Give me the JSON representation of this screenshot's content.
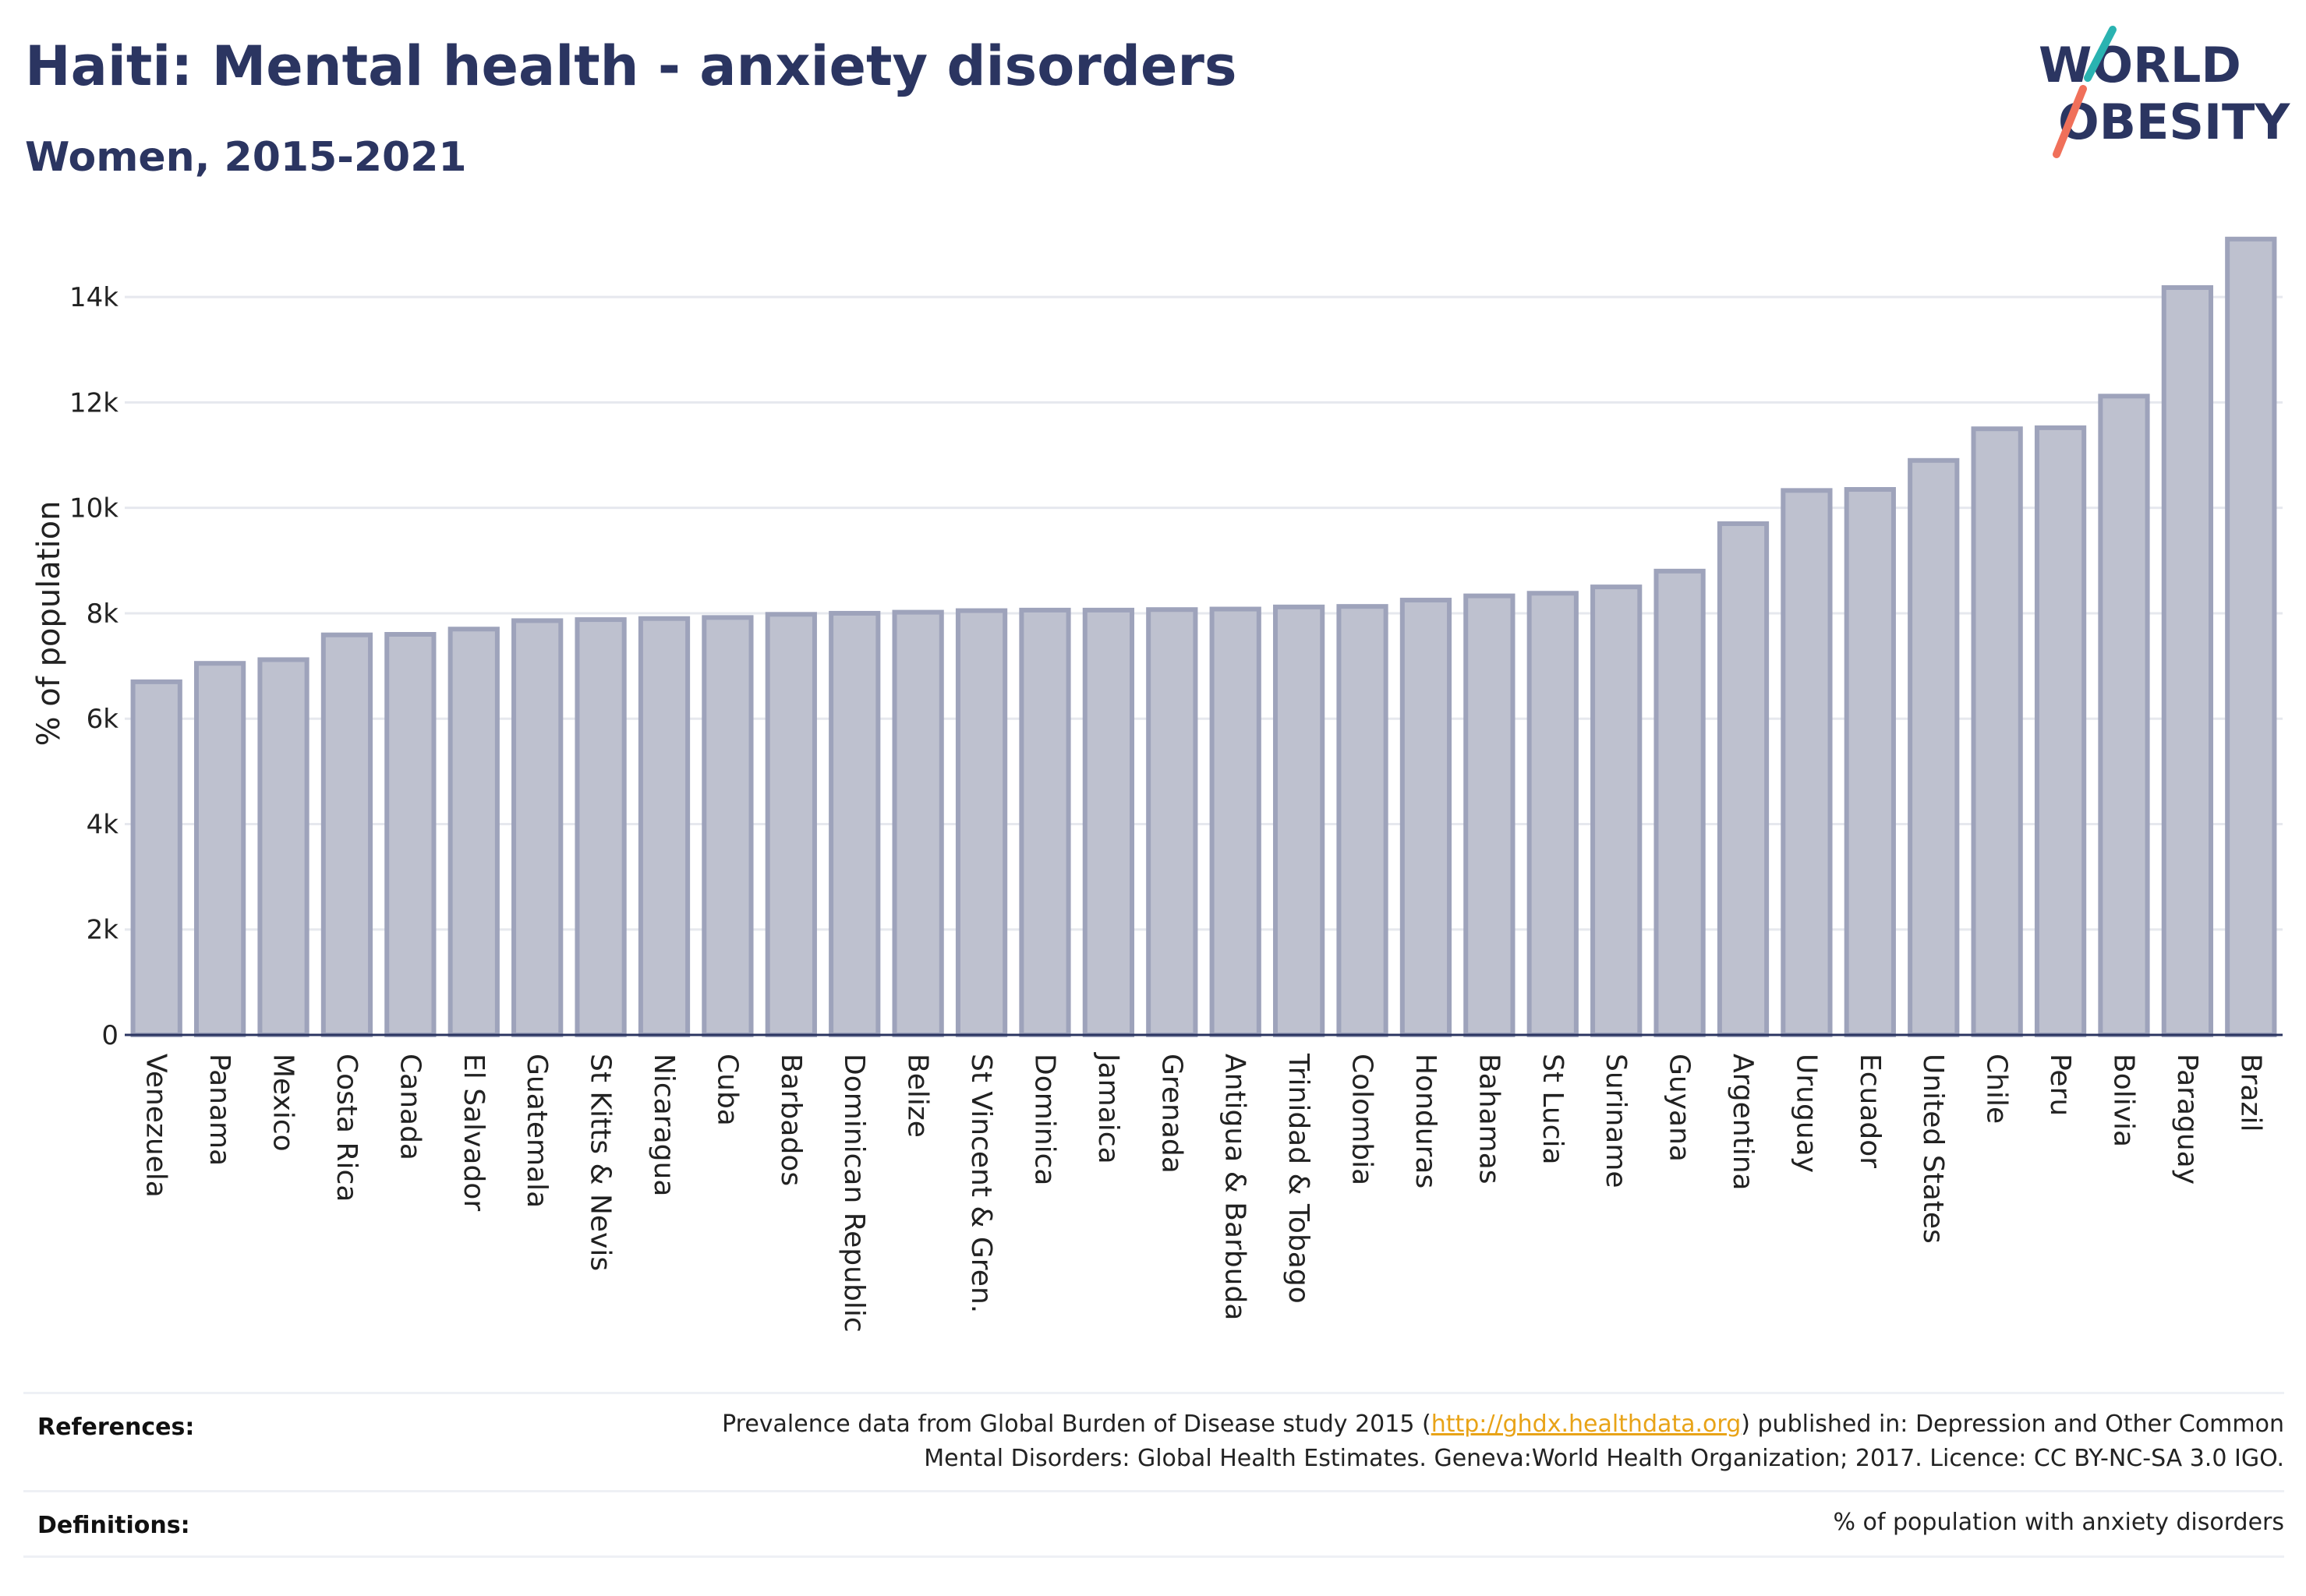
{
  "header": {
    "title": "Haiti: Mental health - anxiety disorders",
    "subtitle": "Women, 2015-2021"
  },
  "logo": {
    "line1": "WORLD",
    "line2": "OBESITY",
    "teal": "#2ab3b1",
    "coral": "#f0705a",
    "navy": "#2b3561"
  },
  "chart_data": {
    "type": "bar",
    "ylabel": "% of population",
    "ylim": [
      0,
      15200
    ],
    "yticks": [
      0,
      2000,
      4000,
      6000,
      8000,
      10000,
      12000,
      14000
    ],
    "ytick_labels": [
      "0",
      "2k",
      "4k",
      "6k",
      "8k",
      "10k",
      "12k",
      "14k"
    ],
    "grid": true,
    "bar_fill": "#bec1cf",
    "bar_stroke": "#9ea3bb",
    "categories": [
      "Venezuela",
      "Panama",
      "Mexico",
      "Costa Rica",
      "Canada",
      "El Salvador",
      "Guatemala",
      "St Kitts & Nevis",
      "Nicaragua",
      "Cuba",
      "Barbados",
      "Dominican Republic",
      "Belize",
      "St Vincent & Gren.",
      "Dominica",
      "Jamaica",
      "Grenada",
      "Antigua & Barbuda",
      "Trinidad & Tobago",
      "Colombia",
      "Honduras",
      "Bahamas",
      "St Lucia",
      "Suriname",
      "Guyana",
      "Argentina",
      "Uruguay",
      "Ecuador",
      "United States",
      "Chile",
      "Peru",
      "Bolivia",
      "Paraguay",
      "Brazil"
    ],
    "values": [
      6700,
      7050,
      7120,
      7590,
      7600,
      7700,
      7860,
      7880,
      7900,
      7920,
      7980,
      8000,
      8020,
      8050,
      8060,
      8060,
      8070,
      8080,
      8120,
      8130,
      8250,
      8330,
      8380,
      8500,
      8800,
      9700,
      10330,
      10350,
      10900,
      11500,
      11520,
      12120,
      14180,
      15100
    ]
  },
  "footer": {
    "references_label": "References:",
    "references_line1_pre": "Prevalence data from Global Burden of Disease study 2015 (",
    "references_link": "http://ghdx.healthdata.org",
    "references_line1_post": ") published in: Depression and Other Common",
    "references_line2": "Mental Disorders: Global Health Estimates. Geneva:World Health Organization; 2017. Licence: CC BY-NC-SA 3.0 IGO.",
    "definitions_label": "Definitions:",
    "definitions_text": "% of population with anxiety disorders"
  }
}
